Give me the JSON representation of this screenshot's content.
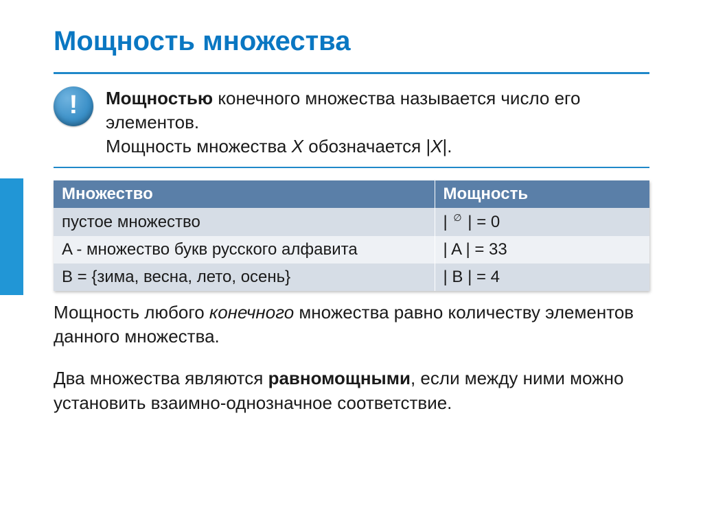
{
  "colors": {
    "accent": "#2196d6",
    "title": "#0a77c2",
    "hr": "#1f88c9",
    "badge_bg": "#3a8fc7",
    "table_header_bg": "#5a7fa8",
    "table_row_odd": "#d6dde6",
    "table_row_even": "#eef1f5",
    "text": "#1a1a1a"
  },
  "title": "Мощность множества",
  "definition": {
    "line1_bold": "Мощностью",
    "line1_rest": " конечного множества называется число его элементов.",
    "line2_pre": "Мощность множества ",
    "line2_x1": "X",
    "line2_mid": " обозначается |",
    "line2_x2": "X",
    "line2_post": "|."
  },
  "badge_mark": "!",
  "table": {
    "headers": [
      "Множество",
      "Мощность"
    ],
    "rows": [
      {
        "set": "пустое множество",
        "card_pre": "| ",
        "card_sym": "∅",
        "card_post": "  | = 0"
      },
      {
        "set": "A  - множество букв русского алфавита",
        "card": "| A | = 33"
      },
      {
        "set": "B = {зима, весна, лето, осень}",
        "card": "| B | = 4"
      }
    ]
  },
  "para1_pre": "Мощность любого ",
  "para1_it": "конечного",
  "para1_post": " множества равно количеству элементов данного множества.",
  "para2_pre": "Два множества являются ",
  "para2_bold": "равномощными",
  "para2_post": ", если между ними можно установить взаимно-однозначное соответствие."
}
